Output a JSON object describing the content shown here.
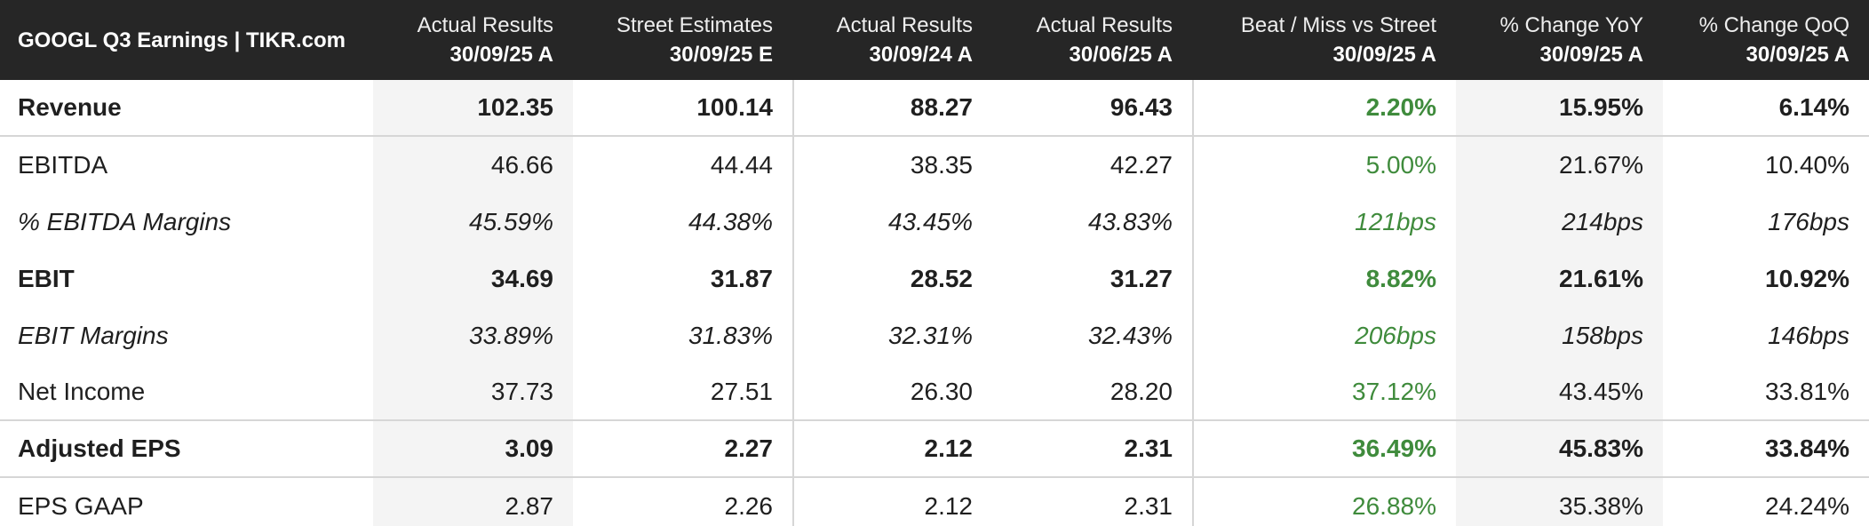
{
  "title": "GOOGL Q3 Earnings | TIKR.com",
  "columns": [
    {
      "line1": "Actual Results",
      "line2": "30/09/25 A"
    },
    {
      "line1": "Street Estimates",
      "line2": "30/09/25 E"
    },
    {
      "line1": "Actual Results",
      "line2": "30/09/24 A"
    },
    {
      "line1": "Actual Results",
      "line2": "30/06/25 A"
    },
    {
      "line1": "Beat / Miss vs Street",
      "line2": "30/09/25 A"
    },
    {
      "line1": "% Change YoY",
      "line2": "30/09/25 A"
    },
    {
      "line1": "% Change QoQ",
      "line2": "30/09/25 A"
    }
  ],
  "rows": [
    {
      "label": "Revenue",
      "values": [
        "102.35",
        "100.14",
        "88.27",
        "96.43",
        "2.20%",
        "15.95%",
        "6.14%"
      ]
    },
    {
      "label": "EBITDA",
      "values": [
        "46.66",
        "44.44",
        "38.35",
        "42.27",
        "5.00%",
        "21.67%",
        "10.40%"
      ]
    },
    {
      "label": "% EBITDA Margins",
      "values": [
        "45.59%",
        "44.38%",
        "43.45%",
        "43.83%",
        "121bps",
        "214bps",
        "176bps"
      ]
    },
    {
      "label": "EBIT",
      "values": [
        "34.69",
        "31.87",
        "28.52",
        "31.27",
        "8.82%",
        "21.61%",
        "10.92%"
      ]
    },
    {
      "label": "EBIT Margins",
      "values": [
        "33.89%",
        "31.83%",
        "32.31%",
        "32.43%",
        "206bps",
        "158bps",
        "146bps"
      ]
    },
    {
      "label": "Net Income",
      "values": [
        "37.73",
        "27.51",
        "26.30",
        "28.20",
        "37.12%",
        "43.45%",
        "33.81%"
      ]
    },
    {
      "label": "Adjusted EPS",
      "values": [
        "3.09",
        "2.27",
        "2.12",
        "2.31",
        "36.49%",
        "45.83%",
        "33.84%"
      ]
    },
    {
      "label": "EPS GAAP",
      "values": [
        "2.87",
        "2.26",
        "2.12",
        "2.31",
        "26.88%",
        "35.38%",
        "24.24%"
      ]
    }
  ],
  "colors": {
    "header_bg": "#262626",
    "positive": "#3f8b3c",
    "shade": "#f4f4f4",
    "grid": "#d6d6d6"
  }
}
